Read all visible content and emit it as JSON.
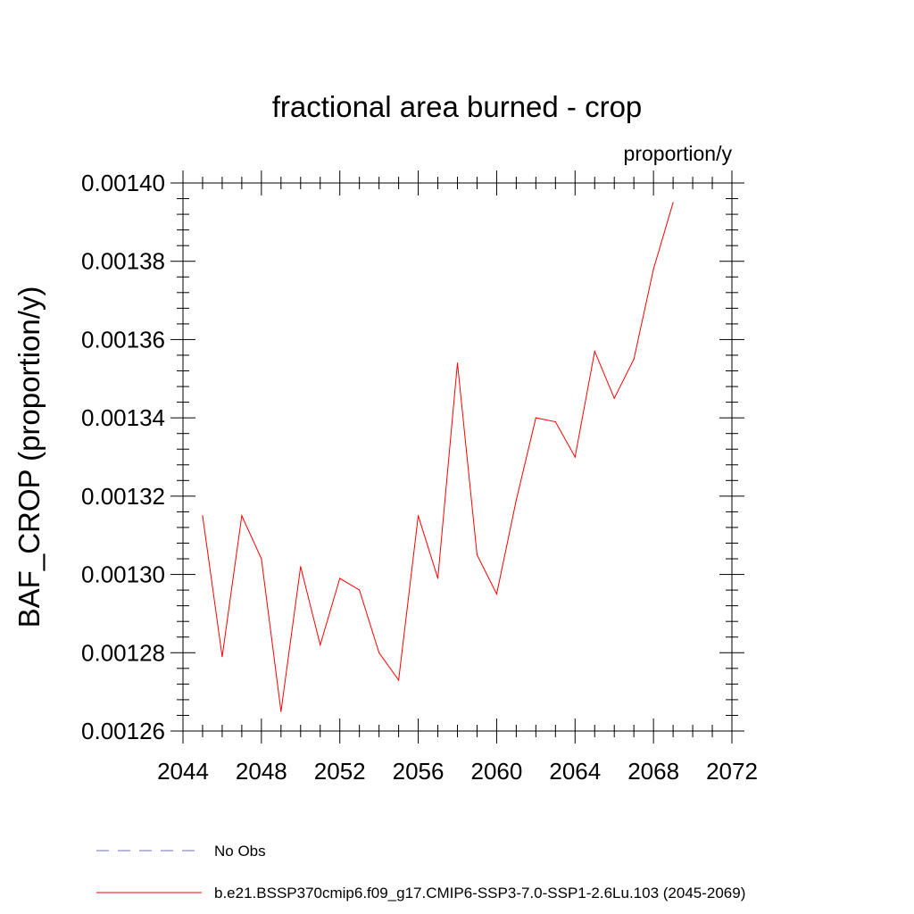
{
  "chart_data": {
    "type": "line",
    "title": "fractional area burned - crop",
    "units": "proportion/y",
    "xlabel": "",
    "ylabel": "BAF_CROP  (proportion/y)",
    "xlim": [
      2044,
      2072
    ],
    "ylim": [
      0.00126,
      0.0014
    ],
    "x_ticks": [
      "2044",
      "2048",
      "2052",
      "2056",
      "2060",
      "2064",
      "2068",
      "2072"
    ],
    "y_ticks": [
      "0.00126",
      "0.00128",
      "0.00130",
      "0.00132",
      "0.00134",
      "0.00136",
      "0.00138",
      "0.00140"
    ],
    "grid": false,
    "legend_position": "bottom",
    "series": [
      {
        "name": "b.e21.BSSP370cmip6.f09_g17.CMIP6-SSP3-7.0-SSP1-2.6Lu.103 (2045-2069)",
        "color": "#ff0000",
        "dash": "solid",
        "x": [
          2045,
          2046,
          2047,
          2048,
          2049,
          2050,
          2051,
          2052,
          2053,
          2054,
          2055,
          2056,
          2057,
          2058,
          2059,
          2060,
          2061,
          2062,
          2063,
          2064,
          2065,
          2066,
          2067,
          2068,
          2069
        ],
        "values": [
          0.001315,
          0.001279,
          0.001315,
          0.001304,
          0.001265,
          0.001302,
          0.001282,
          0.001299,
          0.001296,
          0.00128,
          0.001273,
          0.001315,
          0.001299,
          0.001354,
          0.001305,
          0.001295,
          0.001319,
          0.00134,
          0.001339,
          0.00133,
          0.001357,
          0.001345,
          0.001355,
          0.001378,
          0.001395
        ]
      }
    ],
    "legend": [
      {
        "label": "No Obs",
        "color": "#7070b0",
        "dash": "dashed"
      },
      {
        "label": "b.e21.BSSP370cmip6.f09_g17.CMIP6-SSP3-7.0-SSP1-2.6Lu.103 (2045-2069)",
        "color": "#ff0000",
        "dash": "solid"
      }
    ]
  }
}
